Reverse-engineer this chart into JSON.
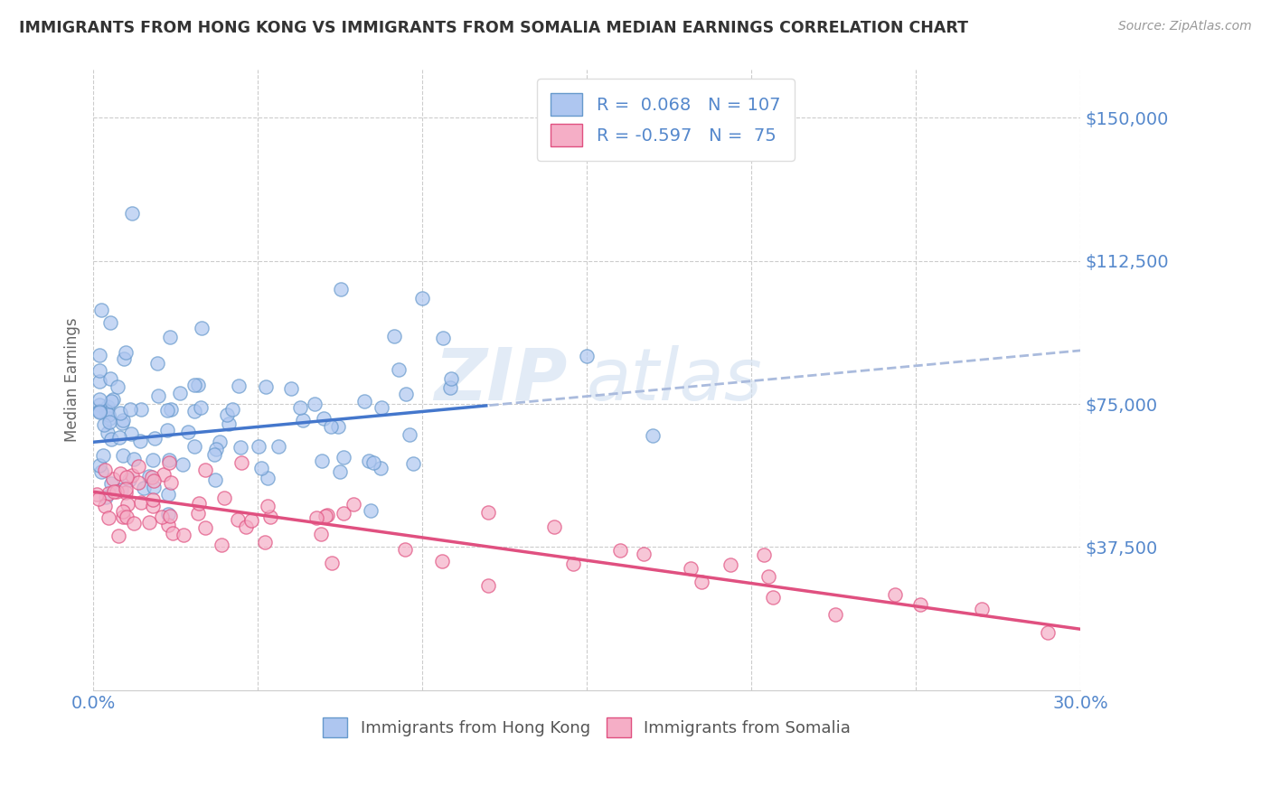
{
  "title": "IMMIGRANTS FROM HONG KONG VS IMMIGRANTS FROM SOMALIA MEDIAN EARNINGS CORRELATION CHART",
  "source": "Source: ZipAtlas.com",
  "ylabel": "Median Earnings",
  "xlim": [
    0.0,
    0.3
  ],
  "ylim": [
    0,
    162500
  ],
  "yticks": [
    0,
    37500,
    75000,
    112500,
    150000
  ],
  "ytick_labels": [
    "",
    "$37,500",
    "$75,000",
    "$112,500",
    "$150,000"
  ],
  "xticks": [
    0.0,
    0.05,
    0.1,
    0.15,
    0.2,
    0.25,
    0.3
  ],
  "xtick_labels": [
    "0.0%",
    "",
    "",
    "",
    "",
    "",
    "30.0%"
  ],
  "hk_R": 0.068,
  "hk_N": 107,
  "som_R": -0.597,
  "som_N": 75,
  "hk_color": "#aec6f0",
  "som_color": "#f5aec6",
  "hk_edge_color": "#6699cc",
  "som_edge_color": "#e05080",
  "hk_trend_solid_color": "#4477cc",
  "hk_trend_dash_color": "#aabbdd",
  "som_trend_color": "#e05080",
  "watermark_color": "#d0dff0",
  "background_color": "#ffffff",
  "grid_color": "#cccccc",
  "title_color": "#333333",
  "axis_label_color": "#5588cc",
  "ylabel_color": "#666666",
  "legend_label_hk": "Immigrants from Hong Kong",
  "legend_label_som": "Immigrants from Somalia",
  "hk_trend_intercept": 65000,
  "hk_trend_slope": 80000,
  "som_trend_intercept": 52000,
  "som_trend_slope": -120000,
  "hk_scatter_seed": 42,
  "som_scatter_seed": 123
}
